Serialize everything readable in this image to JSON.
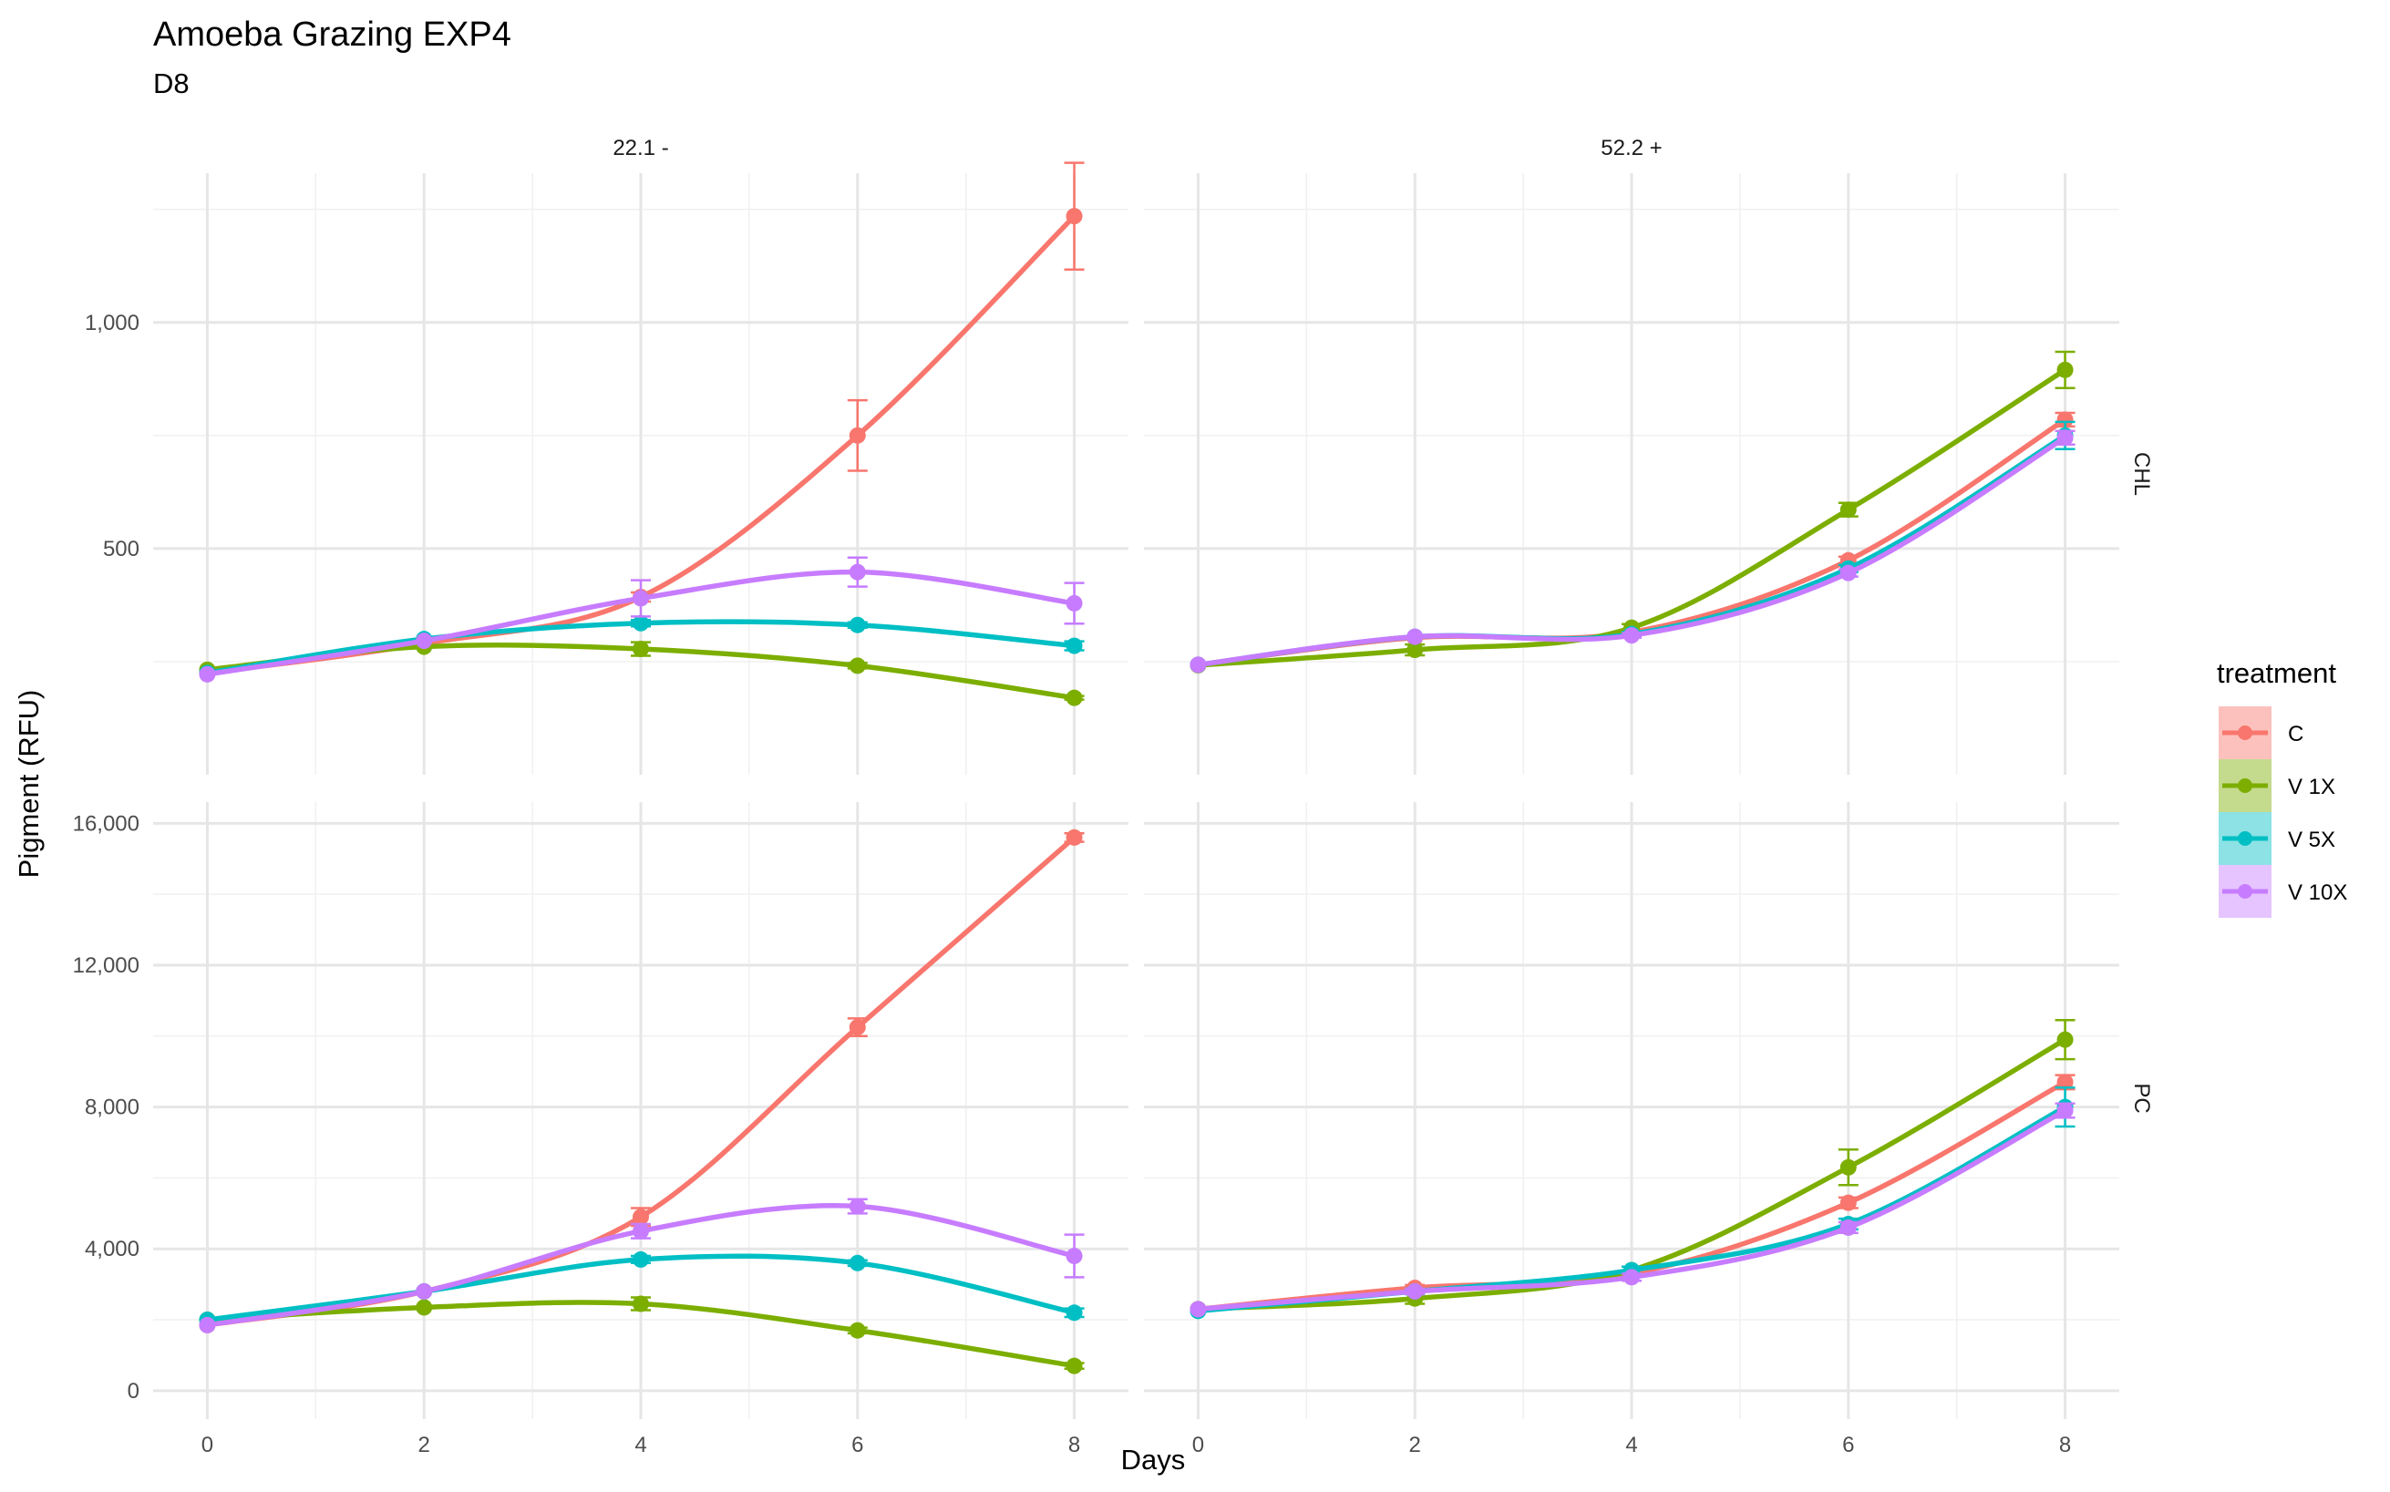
{
  "chart_data": {
    "type": "line",
    "title": "Amoeba Grazing EXP4",
    "subtitle": "D8",
    "xlabel": "Days",
    "ylabel": "Pigment (RFU)",
    "x": [
      0,
      2,
      4,
      6,
      8
    ],
    "xlim": [
      -0.5,
      8.5
    ],
    "x_ticks": [
      "0",
      "2",
      "4",
      "6",
      "8"
    ],
    "columns": [
      "22.1 -",
      "52.2 +"
    ],
    "rows": [
      "CHL",
      "PC"
    ],
    "grid": true,
    "legend": {
      "title": "treatment",
      "placement": "right",
      "entries": [
        {
          "label": "C",
          "color": "#F8766D"
        },
        {
          "label": "V 1X",
          "color": "#7CAE00"
        },
        {
          "label": "V 5X",
          "color": "#00BFC4"
        },
        {
          "label": "V 10X",
          "color": "#C77CFF"
        }
      ]
    },
    "row_scales": [
      {
        "row": "CHL",
        "ylim": [
          0,
          1330
        ],
        "ticks": [
          500,
          1000
        ],
        "tick_labels": [
          "500",
          "1,000"
        ]
      },
      {
        "row": "PC",
        "ylim": [
          -800,
          16600
        ],
        "ticks": [
          0,
          4000,
          8000,
          12000,
          16000
        ],
        "tick_labels": [
          "0",
          "4,000",
          "8,000",
          "12,000",
          "16,000"
        ]
      }
    ],
    "panels": [
      {
        "column": "22.1 -",
        "row": "CHL",
        "series": [
          {
            "name": "C",
            "values": [
              225,
              290,
              393,
              750,
              1235
            ],
            "errors": [
              0,
              0,
              10,
              78,
              118
            ]
          },
          {
            "name": "V 1X",
            "values": [
              232,
              283,
              278,
              241,
              170
            ],
            "errors": [
              0,
              0,
              15,
              6,
              4
            ]
          },
          {
            "name": "V 5X",
            "values": [
              225,
              300,
              335,
              331,
              285
            ],
            "errors": [
              0,
              0,
              7,
              6,
              10
            ]
          },
          {
            "name": "V 10X",
            "values": [
              222,
              296,
              390,
              448,
              379
            ],
            "errors": [
              0,
              0,
              40,
              32,
              45
            ]
          }
        ]
      },
      {
        "column": "52.2 +",
        "row": "CHL",
        "series": [
          {
            "name": "C",
            "values": [
              243,
              303,
              315,
              474,
              785
            ],
            "errors": [
              0,
              0,
              5,
              8,
              15
            ]
          },
          {
            "name": "V 1X",
            "values": [
              242,
              276,
              325,
              586,
              895
            ],
            "errors": [
              0,
              12,
              8,
              15,
              40
            ]
          },
          {
            "name": "V 5X",
            "values": [
              243,
              305,
              311,
              456,
              750
            ],
            "errors": [
              0,
              0,
              5,
              8,
              30
            ]
          },
          {
            "name": "V 10X",
            "values": [
              243,
              305,
              308,
              446,
              745
            ],
            "errors": [
              0,
              0,
              5,
              8,
              15
            ]
          }
        ]
      },
      {
        "column": "22.1 -",
        "row": "PC",
        "series": [
          {
            "name": "C",
            "values": [
              1850,
              2800,
              4900,
              10250,
              15600
            ],
            "errors": [
              0,
              0,
              250,
              250,
              120
            ]
          },
          {
            "name": "V 1X",
            "values": [
              2000,
              2350,
              2450,
              1700,
              700
            ],
            "errors": [
              0,
              0,
              180,
              80,
              80
            ]
          },
          {
            "name": "V 5X",
            "values": [
              2000,
              2800,
              3700,
              3600,
              2200
            ],
            "errors": [
              0,
              0,
              100,
              80,
              120
            ]
          },
          {
            "name": "V 10X",
            "values": [
              1850,
              2800,
              4500,
              5200,
              3800
            ],
            "errors": [
              0,
              0,
              200,
              200,
              600
            ]
          }
        ]
      },
      {
        "column": "52.2 +",
        "row": "PC",
        "series": [
          {
            "name": "C",
            "values": [
              2300,
              2900,
              3300,
              5300,
              8700
            ],
            "errors": [
              0,
              80,
              80,
              150,
              200
            ]
          },
          {
            "name": "V 1X",
            "values": [
              2300,
              2600,
              3400,
              6300,
              9900
            ],
            "errors": [
              0,
              150,
              100,
              500,
              550
            ]
          },
          {
            "name": "V 5X",
            "values": [
              2250,
              2800,
              3400,
              4700,
              8000
            ],
            "errors": [
              0,
              80,
              100,
              150,
              550
            ]
          },
          {
            "name": "V 10X",
            "values": [
              2300,
              2800,
              3200,
              4600,
              7900
            ],
            "errors": [
              0,
              80,
              100,
              150,
              200
            ]
          }
        ]
      }
    ]
  }
}
